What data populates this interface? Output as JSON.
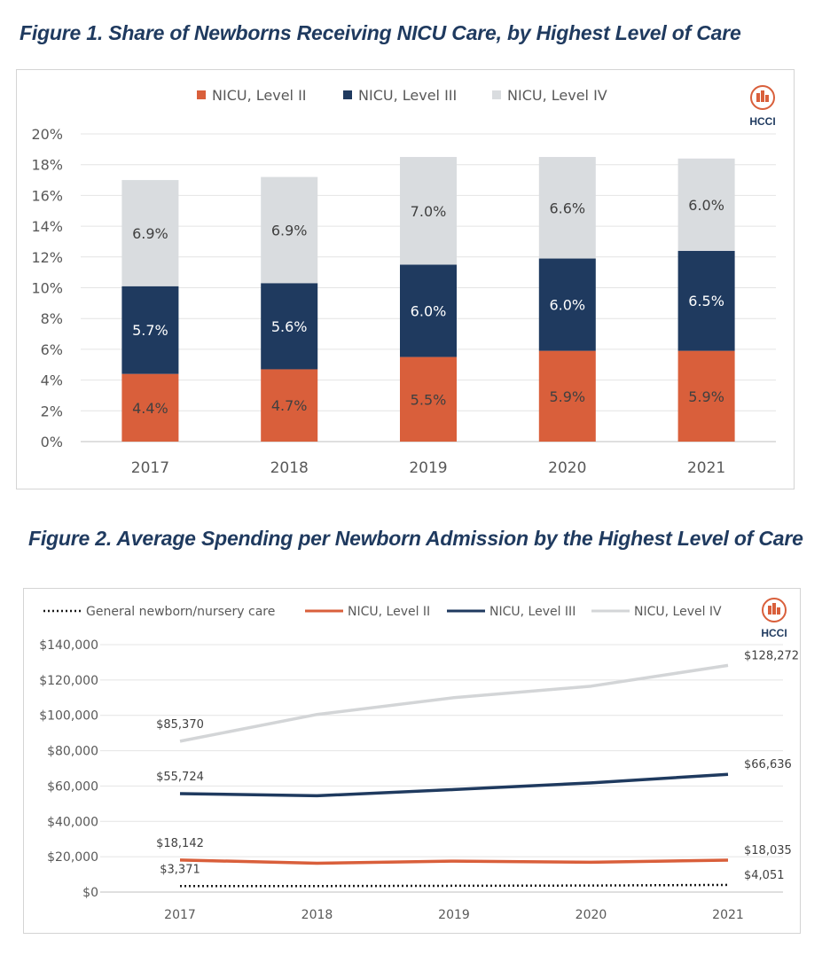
{
  "figures": [
    {
      "title": "Figure 1. Share of Newborns Receiving NICU Care, by Highest Level of Care",
      "logo_text": "HCCI",
      "chart_data": {
        "type": "bar",
        "stacked": true,
        "categories": [
          "2017",
          "2018",
          "2019",
          "2020",
          "2021"
        ],
        "series": [
          {
            "name": "NICU, Level II",
            "color": "#d95f3b",
            "values": [
              4.4,
              4.7,
              5.5,
              5.9,
              5.9
            ],
            "labels": [
              "4.4%",
              "4.7%",
              "5.5%",
              "5.9%",
              "5.9%"
            ]
          },
          {
            "name": "NICU, Level III",
            "color": "#1f3a5f",
            "values": [
              5.7,
              5.6,
              6.0,
              6.0,
              6.5
            ],
            "labels": [
              "5.7%",
              "5.6%",
              "6.0%",
              "6.0%",
              "6.5%"
            ]
          },
          {
            "name": "NICU, Level IV",
            "color": "#d9dcdf",
            "values": [
              6.9,
              6.9,
              7.0,
              6.6,
              6.0
            ],
            "labels": [
              "6.9%",
              "6.9%",
              "7.0%",
              "6.6%",
              "6.0%"
            ]
          }
        ],
        "ylim": [
          0,
          20
        ],
        "yticks": [
          "0%",
          "2%",
          "4%",
          "6%",
          "8%",
          "10%",
          "12%",
          "14%",
          "16%",
          "18%",
          "20%"
        ],
        "legend": "top-center",
        "grid": true
      }
    },
    {
      "title": "Figure 2. Average Spending per Newborn Admission by the Highest Level of Care",
      "logo_text": "HCCI",
      "chart_data": {
        "type": "line",
        "categories": [
          "2017",
          "2018",
          "2019",
          "2020",
          "2021"
        ],
        "series": [
          {
            "name": "General newborn/nursery care",
            "color": "#1a1a1a",
            "style": "dotted",
            "values": [
              3371,
              3400,
              3550,
              3700,
              4051
            ],
            "start_label": "$3,371",
            "end_label": "$4,051"
          },
          {
            "name": "NICU, Level II",
            "color": "#d95f3b",
            "style": "solid",
            "values": [
              18142,
              16300,
              17500,
              16900,
              18035
            ],
            "start_label": "$18,142",
            "end_label": "$18,035"
          },
          {
            "name": "NICU, Level III",
            "color": "#1f3a5f",
            "style": "solid",
            "values": [
              55724,
              54500,
              58000,
              61800,
              66636
            ],
            "start_label": "$55,724",
            "end_label": "$66,636"
          },
          {
            "name": "NICU, Level IV",
            "color": "#d3d5d7",
            "style": "solid",
            "values": [
              85370,
              100500,
              110000,
              116500,
              128272
            ],
            "start_label": "$85,370",
            "end_label": "$128,272"
          }
        ],
        "ylim": [
          0,
          140000
        ],
        "yticks": [
          "$0",
          "$20,000",
          "$40,000",
          "$60,000",
          "$80,000",
          "$100,000",
          "$120,000",
          "$140,000"
        ],
        "legend": "top",
        "grid": true
      }
    }
  ]
}
